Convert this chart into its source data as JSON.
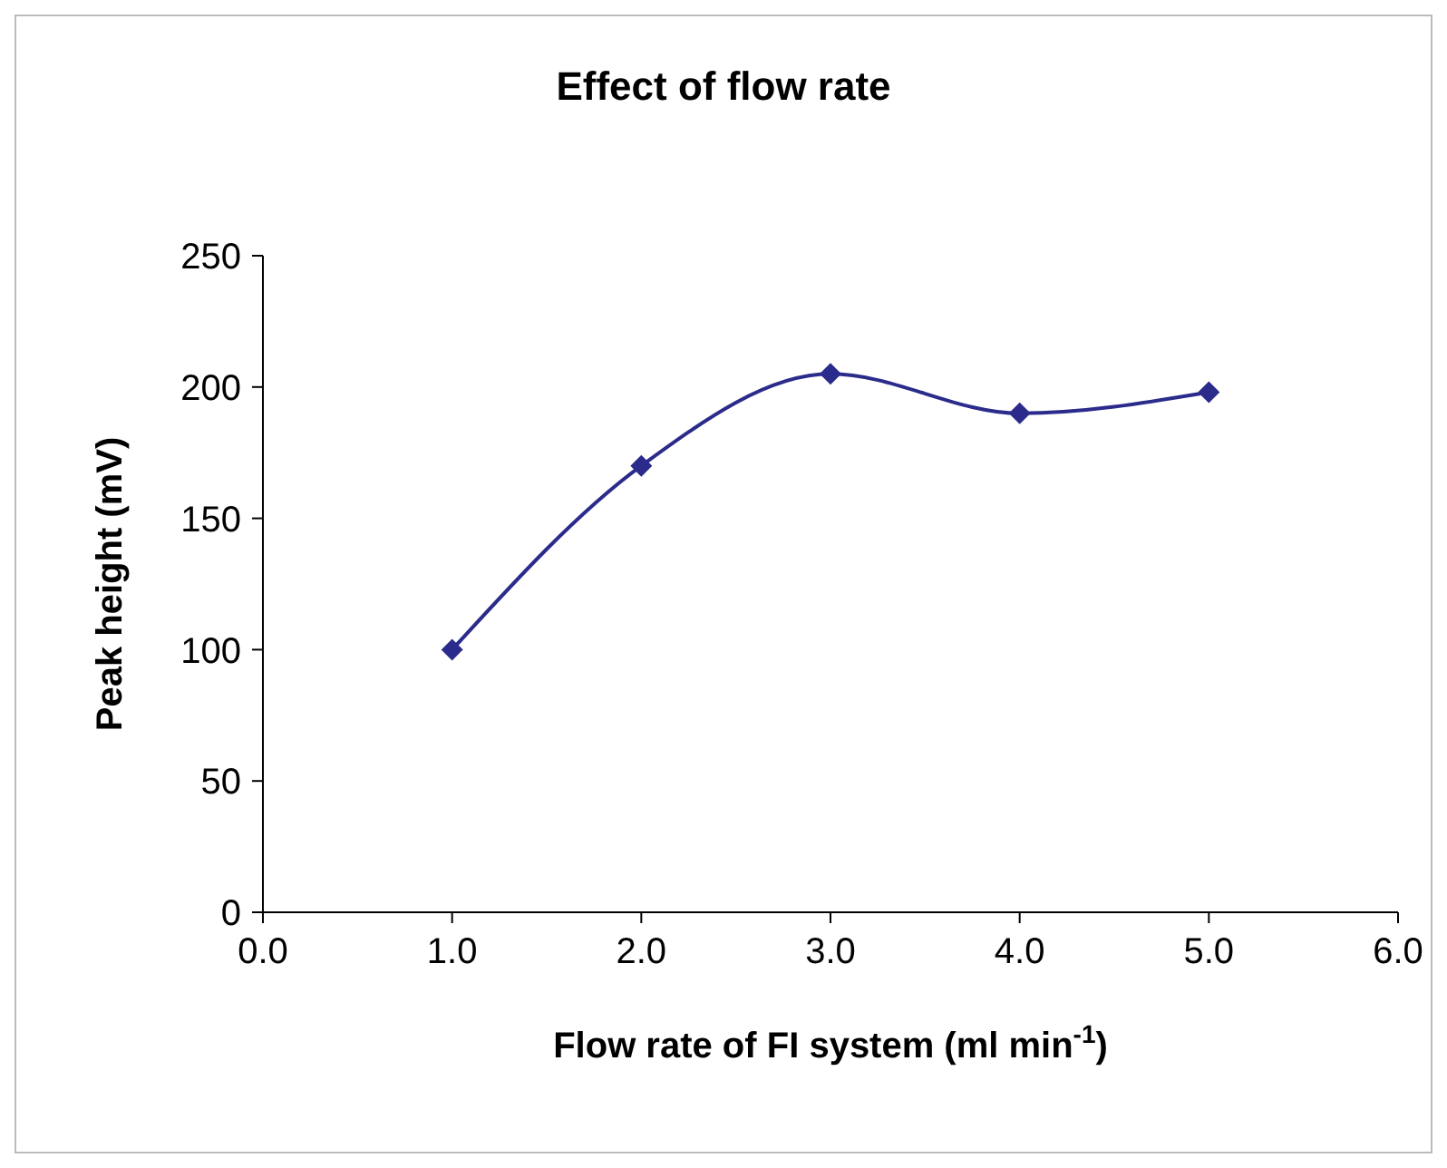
{
  "chart_data": {
    "type": "line",
    "title": "Effect of flow rate",
    "xlabel": "Flow rate of FI system (ml min$^{-1}$)",
    "ylabel": "Peak height (mV)",
    "x": [
      1,
      2,
      3,
      4,
      5
    ],
    "series": [
      {
        "color": "#2b2b8c",
        "values": [
          100,
          170,
          205,
          190,
          198
        ]
      }
    ],
    "xlim": [
      0,
      6
    ],
    "xticks": [
      {
        "value": 0,
        "label": "0.0"
      },
      {
        "value": 1,
        "label": "1.0"
      },
      {
        "value": 2,
        "label": "2.0"
      },
      {
        "value": 3,
        "label": "3.0"
      },
      {
        "value": 4,
        "label": "4.0"
      },
      {
        "value": 5,
        "label": "5.0"
      },
      {
        "value": 6,
        "label": "6.0"
      }
    ],
    "ylim": [
      0,
      250
    ],
    "yticks": [
      0,
      50,
      100,
      150,
      200,
      250
    ],
    "grid": false,
    "legend": false,
    "marker": "diamond",
    "line_style": "solid"
  }
}
